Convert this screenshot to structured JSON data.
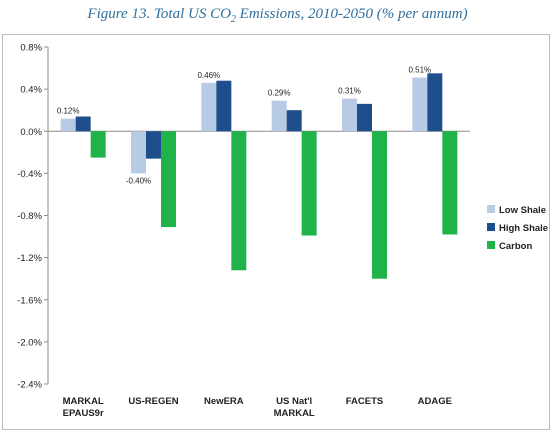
{
  "title_prefix": "Figure 13. Total US CO",
  "title_sub": "2",
  "title_suffix": " Emissions, 2010-2050 (% per annum)",
  "chart_data": {
    "type": "bar",
    "title": "Figure 13. Total US CO2 Emissions, 2010-2050 (% per annum)",
    "categories": [
      [
        "MARKAL",
        "EPAUS9r"
      ],
      [
        "US-REGEN"
      ],
      [
        "NewERA"
      ],
      [
        "US Nat'l",
        "MARKAL"
      ],
      [
        "FACETS"
      ],
      [
        "ADAGE"
      ]
    ],
    "series": [
      {
        "name": "Low Shale",
        "color": "#b7cce4",
        "values": [
          0.12,
          -0.4,
          0.46,
          0.29,
          0.31,
          0.51
        ]
      },
      {
        "name": "High Shale",
        "color": "#1f4e8c",
        "values": [
          0.14,
          -0.26,
          0.48,
          0.2,
          0.26,
          0.55
        ]
      },
      {
        "name": "Carbon",
        "color": "#1fb34a",
        "values": [
          -0.25,
          -0.91,
          -1.32,
          -0.99,
          -1.4,
          -0.98
        ]
      }
    ],
    "data_labels": [
      "0.12%",
      "-0.40%",
      "0.46%",
      "0.29%",
      "0.31%",
      "0.51%"
    ],
    "yticks": [
      "0.8%",
      "0.4%",
      "0.0%",
      "-0.4%",
      "-0.8%",
      "-1.2%",
      "-1.6%",
      "-2.0%",
      "-2.4%"
    ],
    "ylim": [
      -2.4,
      0.8
    ],
    "legend_position": "right",
    "grid": false
  }
}
